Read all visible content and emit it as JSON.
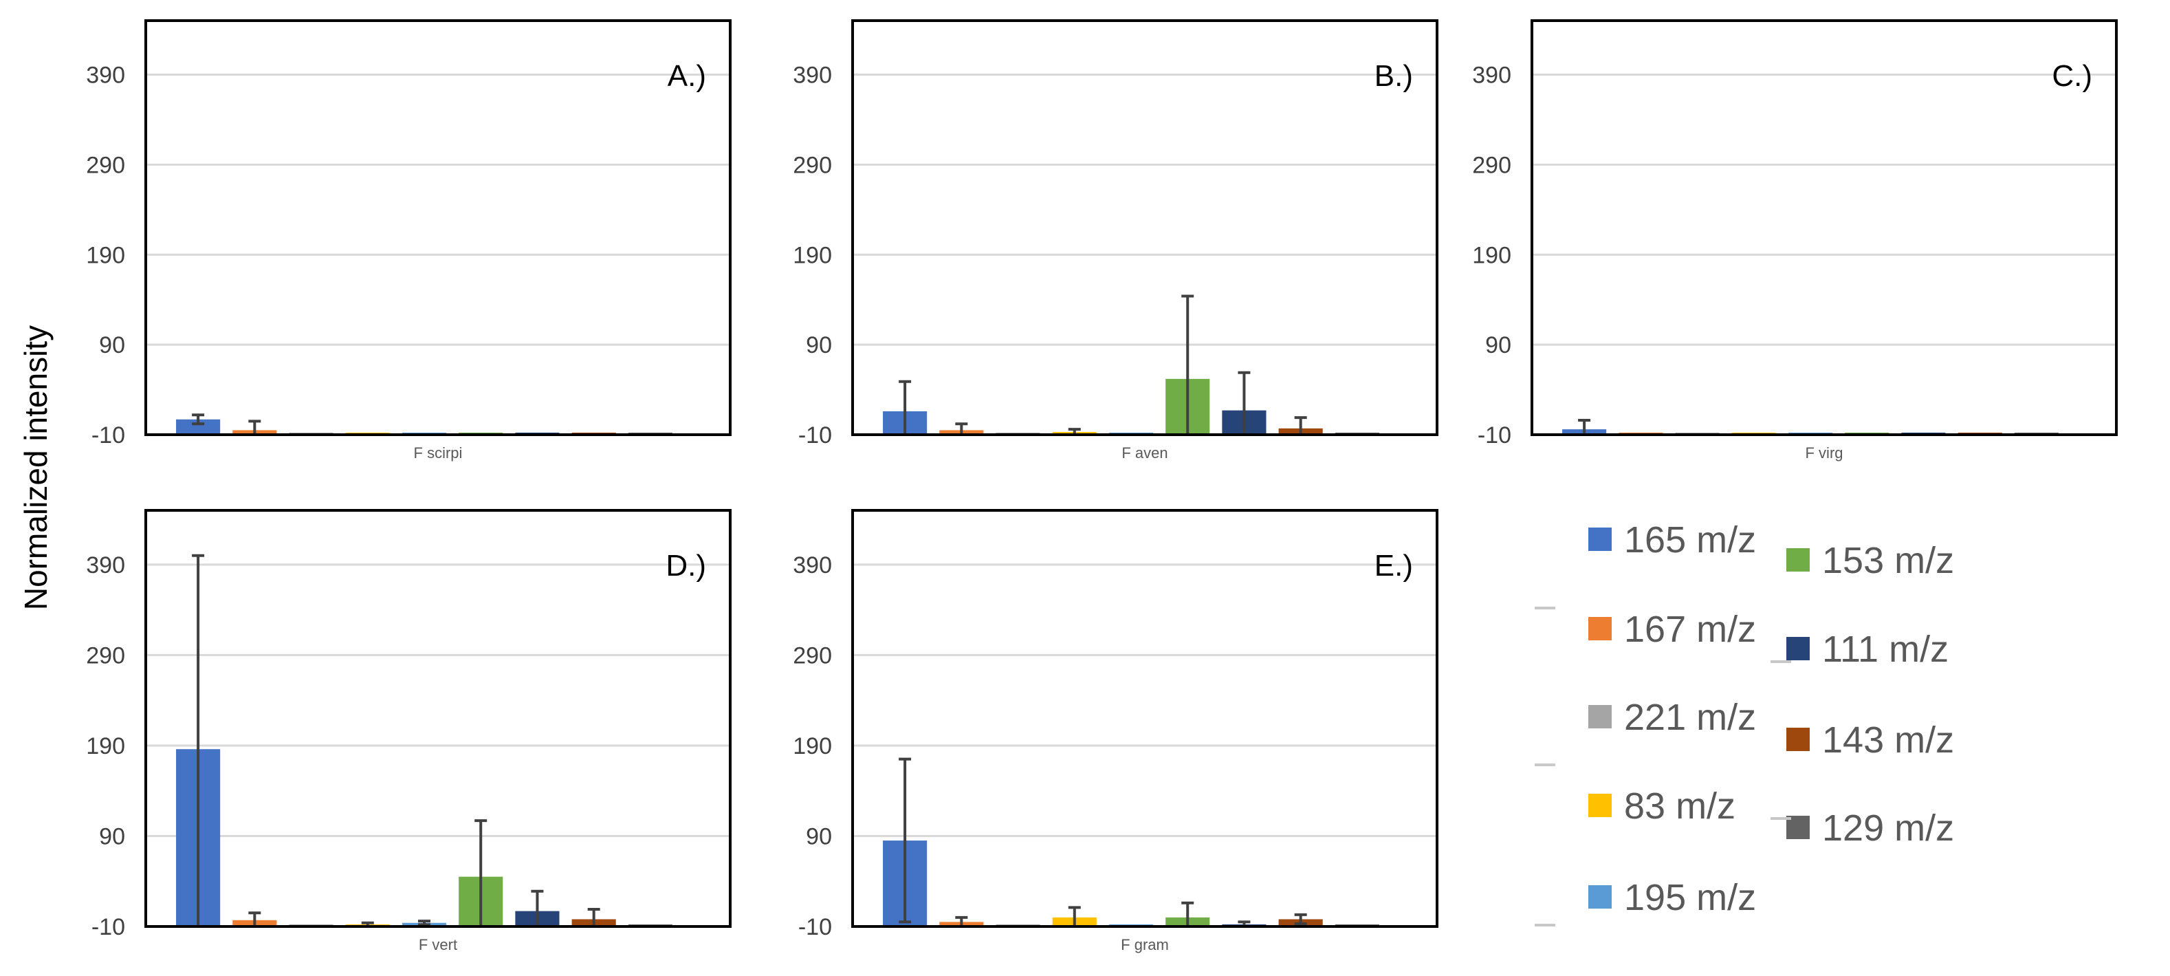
{
  "figure": {
    "ylabel": "Normalized intensity"
  },
  "series_colors": {
    "165 m/z": "#4472C4",
    "167 m/z": "#ED7D31",
    "221 m/z": "#A5A5A5",
    "83 m/z": "#FFC000",
    "195 m/z": "#5B9BD5",
    "153 m/z": "#70AD47",
    "111 m/z": "#264478",
    "143 m/z": "#9E480E",
    "129 m/z": "#636363"
  },
  "legend": {
    "entries": [
      "165 m/z",
      "167 m/z",
      "221 m/z",
      "83 m/z",
      "195 m/z",
      "153 m/z",
      "111 m/z",
      "143 m/z",
      "129 m/z"
    ]
  },
  "chart_data": [
    {
      "type": "bar",
      "panel_label": "A.)",
      "categories": [
        "F scirpi"
      ],
      "ylim": [
        -10,
        450
      ],
      "yticks": [
        -10,
        90,
        190,
        290,
        390
      ],
      "grid": true,
      "series": [
        {
          "name": "165 m/z",
          "values": [
            7
          ],
          "error": [
            5
          ]
        },
        {
          "name": "167 m/z",
          "values": [
            -5
          ],
          "error": [
            10
          ]
        },
        {
          "name": "221 m/z",
          "values": [
            -10
          ],
          "error": [
            0
          ]
        },
        {
          "name": "83 m/z",
          "values": [
            -10
          ],
          "error": [
            0
          ]
        },
        {
          "name": "195 m/z",
          "values": [
            -10
          ],
          "error": [
            0
          ]
        },
        {
          "name": "153 m/z",
          "values": [
            -10
          ],
          "error": [
            0
          ]
        },
        {
          "name": "111 m/z",
          "values": [
            -10
          ],
          "error": [
            0
          ]
        },
        {
          "name": "143 m/z",
          "values": [
            -10
          ],
          "error": [
            0
          ]
        },
        {
          "name": "129 m/z",
          "values": [
            -10
          ],
          "error": [
            0
          ]
        }
      ]
    },
    {
      "type": "bar",
      "panel_label": "B.)",
      "categories": [
        "F aven"
      ],
      "ylim": [
        -10,
        450
      ],
      "yticks": [
        -10,
        90,
        190,
        290,
        390
      ],
      "grid": true,
      "series": [
        {
          "name": "165 m/z",
          "values": [
            16
          ],
          "error": [
            33
          ]
        },
        {
          "name": "167 m/z",
          "values": [
            -5
          ],
          "error": [
            7
          ]
        },
        {
          "name": "221 m/z",
          "values": [
            -10
          ],
          "error": [
            0
          ]
        },
        {
          "name": "83 m/z",
          "values": [
            -7
          ],
          "error": [
            3
          ]
        },
        {
          "name": "195 m/z",
          "values": [
            -10
          ],
          "error": [
            0
          ]
        },
        {
          "name": "153 m/z",
          "values": [
            52
          ],
          "error": [
            92
          ]
        },
        {
          "name": "111 m/z",
          "values": [
            17
          ],
          "error": [
            42
          ]
        },
        {
          "name": "143 m/z",
          "values": [
            -3
          ],
          "error": [
            12
          ]
        },
        {
          "name": "129 m/z",
          "values": [
            -10
          ],
          "error": [
            0
          ]
        }
      ]
    },
    {
      "type": "bar",
      "panel_label": "C.)",
      "categories": [
        "F virg"
      ],
      "ylim": [
        -10,
        450
      ],
      "yticks": [
        -10,
        90,
        190,
        290,
        390
      ],
      "grid": true,
      "series": [
        {
          "name": "165 m/z",
          "values": [
            -4
          ],
          "error": [
            10
          ]
        },
        {
          "name": "167 m/z",
          "values": [
            -10
          ],
          "error": [
            0
          ]
        },
        {
          "name": "221 m/z",
          "values": [
            -10
          ],
          "error": [
            0
          ]
        },
        {
          "name": "83 m/z",
          "values": [
            -10
          ],
          "error": [
            0
          ]
        },
        {
          "name": "195 m/z",
          "values": [
            -10
          ],
          "error": [
            0
          ]
        },
        {
          "name": "153 m/z",
          "values": [
            -10
          ],
          "error": [
            0
          ]
        },
        {
          "name": "111 m/z",
          "values": [
            -10
          ],
          "error": [
            0
          ]
        },
        {
          "name": "143 m/z",
          "values": [
            -10
          ],
          "error": [
            0
          ]
        },
        {
          "name": "129 m/z",
          "values": [
            -10
          ],
          "error": [
            0
          ]
        }
      ]
    },
    {
      "type": "bar",
      "panel_label": "D.)",
      "categories": [
        "F vert"
      ],
      "ylim": [
        -10,
        450
      ],
      "yticks": [
        -10,
        90,
        190,
        290,
        390
      ],
      "grid": true,
      "series": [
        {
          "name": "165 m/z",
          "values": [
            186
          ],
          "error": [
            214
          ]
        },
        {
          "name": "167 m/z",
          "values": [
            -3
          ],
          "error": [
            8
          ]
        },
        {
          "name": "221 m/z",
          "values": [
            -10
          ],
          "error": [
            0
          ]
        },
        {
          "name": "83 m/z",
          "values": [
            -8
          ],
          "error": [
            2
          ]
        },
        {
          "name": "195 m/z",
          "values": [
            -6
          ],
          "error": [
            2
          ]
        },
        {
          "name": "153 m/z",
          "values": [
            45
          ],
          "error": [
            62
          ]
        },
        {
          "name": "111 m/z",
          "values": [
            7
          ],
          "error": [
            22
          ]
        },
        {
          "name": "143 m/z",
          "values": [
            -2
          ],
          "error": [
            11
          ]
        },
        {
          "name": "129 m/z",
          "values": [
            -10
          ],
          "error": [
            0
          ]
        }
      ]
    },
    {
      "type": "bar",
      "panel_label": "E.)",
      "categories": [
        "F gram"
      ],
      "ylim": [
        -10,
        450
      ],
      "yticks": [
        -10,
        90,
        190,
        290,
        390
      ],
      "grid": true,
      "series": [
        {
          "name": "165 m/z",
          "values": [
            85
          ],
          "error": [
            90
          ]
        },
        {
          "name": "167 m/z",
          "values": [
            -5
          ],
          "error": [
            5
          ]
        },
        {
          "name": "221 m/z",
          "values": [
            -10
          ],
          "error": [
            0
          ]
        },
        {
          "name": "83 m/z",
          "values": [
            0
          ],
          "error": [
            11
          ]
        },
        {
          "name": "195 m/z",
          "values": [
            -10
          ],
          "error": [
            0
          ]
        },
        {
          "name": "153 m/z",
          "values": [
            0
          ],
          "error": [
            16
          ]
        },
        {
          "name": "111 m/z",
          "values": [
            -8
          ],
          "error": [
            3
          ]
        },
        {
          "name": "143 m/z",
          "values": [
            -2
          ],
          "error": [
            5
          ]
        },
        {
          "name": "129 m/z",
          "values": [
            -10
          ],
          "error": [
            0
          ]
        }
      ]
    }
  ]
}
